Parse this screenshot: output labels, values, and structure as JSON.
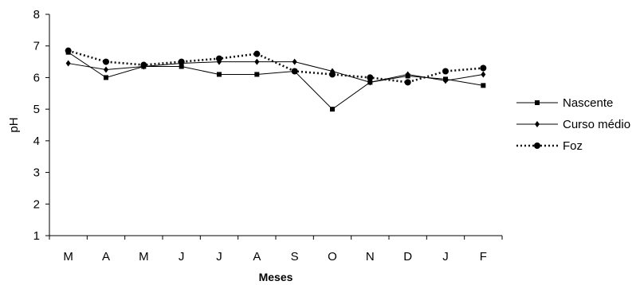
{
  "chart_data": {
    "type": "line",
    "xlabel": "Meses",
    "ylabel": "pH",
    "categories": [
      "M",
      "A",
      "M",
      "J",
      "J",
      "A",
      "S",
      "O",
      "N",
      "D",
      "J",
      "F"
    ],
    "ylim": [
      1,
      8
    ],
    "yticks": [
      "1",
      "2",
      "3",
      "4",
      "5",
      "6",
      "7",
      "8"
    ],
    "grid": false,
    "legend_position": "right",
    "series": [
      {
        "name": "Nascente",
        "marker": "square",
        "line_style": "solid",
        "values": [
          6.8,
          6.0,
          6.35,
          6.35,
          6.1,
          6.1,
          6.2,
          5.0,
          5.85,
          6.05,
          5.95,
          5.75
        ]
      },
      {
        "name": "Curso médio",
        "marker": "diamond",
        "line_style": "solid",
        "values": [
          6.45,
          6.25,
          6.35,
          6.45,
          6.5,
          6.5,
          6.5,
          6.2,
          5.85,
          6.1,
          5.9,
          6.1
        ]
      },
      {
        "name": "Foz",
        "marker": "circle",
        "line_style": "dotted",
        "values": [
          6.85,
          6.5,
          6.4,
          6.5,
          6.6,
          6.75,
          6.2,
          6.1,
          6.0,
          5.85,
          6.2,
          6.3
        ]
      }
    ]
  }
}
